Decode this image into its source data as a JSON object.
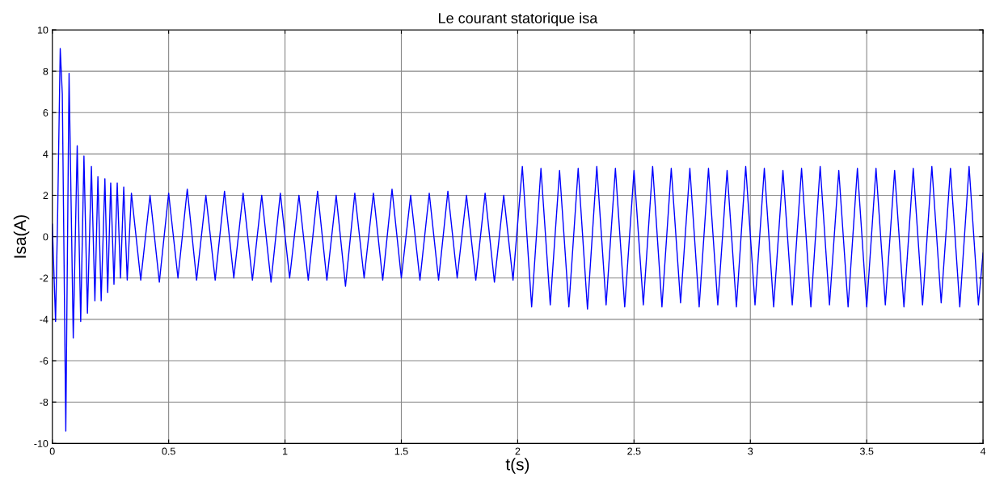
{
  "chart_data": {
    "type": "line",
    "title": "Le courant statorique isa",
    "xlabel": "t(s)",
    "ylabel": "Isa(A)",
    "xlim": [
      0,
      4
    ],
    "xticks": [
      0,
      0.5,
      1,
      1.5,
      2,
      2.5,
      3,
      3.5,
      4
    ],
    "ylim": [
      -10,
      10
    ],
    "yticks": [
      -10,
      -8,
      -6,
      -4,
      -2,
      0,
      2,
      4,
      6,
      8,
      10
    ],
    "grid": true,
    "series": [
      {
        "color": "#0000ff",
        "x": [
          0.0,
          0.014,
          0.023,
          0.034,
          0.043,
          0.058,
          0.072,
          0.09,
          0.107,
          0.122,
          0.136,
          0.151,
          0.168,
          0.183,
          0.196,
          0.21,
          0.226,
          0.238,
          0.251,
          0.265,
          0.279,
          0.293,
          0.307,
          0.322,
          0.34,
          0.38,
          0.42,
          0.46,
          0.5,
          0.54,
          0.58,
          0.62,
          0.66,
          0.7,
          0.74,
          0.78,
          0.82,
          0.86,
          0.9,
          0.94,
          0.98,
          1.02,
          1.06,
          1.1,
          1.14,
          1.18,
          1.22,
          1.26,
          1.3,
          1.34,
          1.38,
          1.42,
          1.46,
          1.5,
          1.54,
          1.58,
          1.62,
          1.66,
          1.7,
          1.74,
          1.78,
          1.82,
          1.86,
          1.9,
          1.94,
          1.98,
          2.02,
          2.06,
          2.1,
          2.14,
          2.18,
          2.22,
          2.26,
          2.3,
          2.34,
          2.38,
          2.42,
          2.46,
          2.5,
          2.54,
          2.58,
          2.62,
          2.66,
          2.7,
          2.74,
          2.78,
          2.82,
          2.86,
          2.9,
          2.94,
          2.98,
          3.02,
          3.06,
          3.1,
          3.14,
          3.18,
          3.22,
          3.26,
          3.3,
          3.34,
          3.38,
          3.42,
          3.46,
          3.5,
          3.54,
          3.58,
          3.62,
          3.66,
          3.7,
          3.74,
          3.78,
          3.82,
          3.86,
          3.9,
          3.94,
          3.98,
          4.0
        ],
        "values": [
          0.6,
          -4.1,
          1.1,
          9.1,
          6.9,
          -9.4,
          7.9,
          -4.9,
          4.4,
          -4.1,
          3.9,
          -3.7,
          3.4,
          -3.1,
          2.9,
          -3.1,
          2.8,
          -2.7,
          2.6,
          -2.3,
          2.6,
          -2.0,
          2.4,
          -2.1,
          2.1,
          -2.1,
          2.0,
          -2.2,
          2.1,
          -2.0,
          2.3,
          -2.1,
          2.0,
          -2.1,
          2.2,
          -2.0,
          2.1,
          -2.1,
          2.0,
          -2.2,
          2.1,
          -2.0,
          2.0,
          -2.1,
          2.2,
          -2.1,
          2.0,
          -2.4,
          2.1,
          -2.0,
          2.1,
          -2.1,
          2.3,
          -2.0,
          2.0,
          -2.1,
          2.1,
          -2.1,
          2.2,
          -2.0,
          2.0,
          -2.1,
          2.1,
          -2.2,
          2.0,
          -2.1,
          3.4,
          -3.4,
          3.3,
          -3.3,
          3.2,
          -3.4,
          3.3,
          -3.5,
          3.4,
          -3.3,
          3.3,
          -3.4,
          3.2,
          -3.3,
          3.4,
          -3.4,
          3.3,
          -3.2,
          3.3,
          -3.4,
          3.3,
          -3.3,
          3.2,
          -3.4,
          3.4,
          -3.3,
          3.3,
          -3.4,
          3.2,
          -3.3,
          3.3,
          -3.4,
          3.4,
          -3.3,
          3.2,
          -3.4,
          3.3,
          -3.4,
          3.3,
          -3.3,
          3.2,
          -3.4,
          3.3,
          -3.3,
          3.4,
          -3.2,
          3.3,
          -3.4,
          3.4,
          -3.3,
          -0.8
        ]
      }
    ]
  }
}
